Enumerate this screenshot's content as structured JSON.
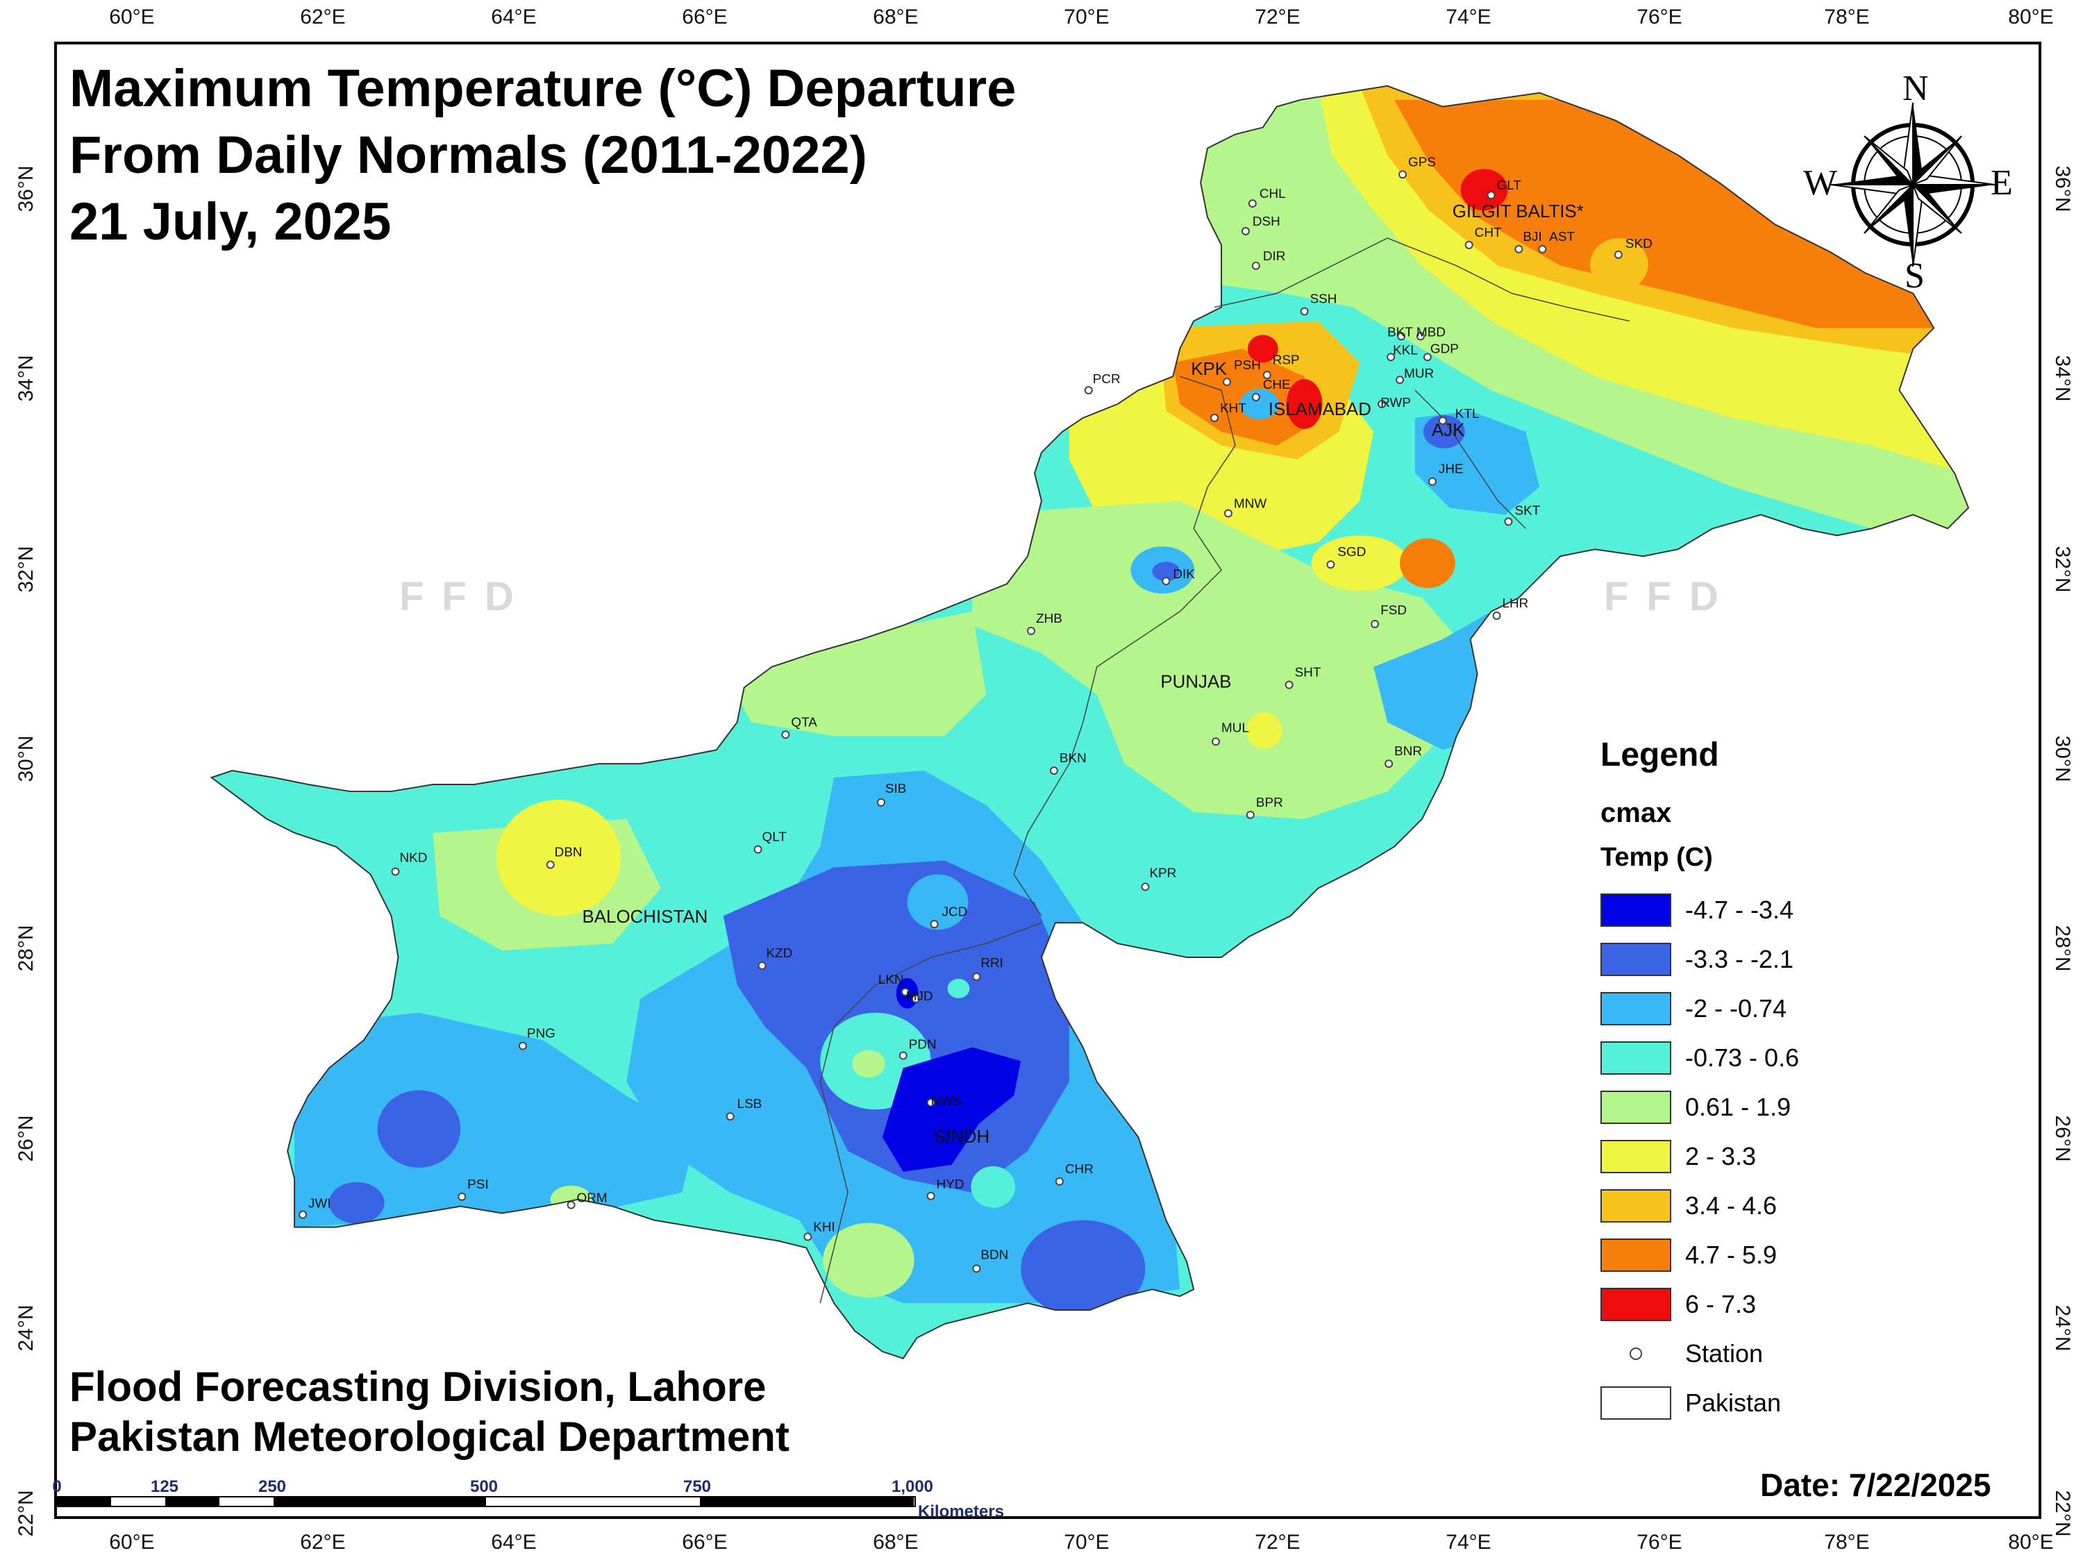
{
  "title": {
    "line1": "Maximum Temperature (°C) Departure",
    "line2": "From Daily Normals (2011-2022)",
    "line3": "21 July, 2025"
  },
  "graticule": {
    "longitudes": [
      "60°E",
      "62°E",
      "64°E",
      "66°E",
      "68°E",
      "70°E",
      "72°E",
      "74°E",
      "76°E",
      "78°E",
      "80°E"
    ],
    "latitudes": [
      "36°N",
      "34°N",
      "32°N",
      "30°N",
      "28°N",
      "26°N",
      "24°N",
      "22°N"
    ]
  },
  "regions": [
    "GILGIT BALTIS*",
    "KPK",
    "ISLAMABAD",
    "AJK",
    "PUNJAB",
    "BALOCHISTAN",
    "SINDH"
  ],
  "stations": [
    "CHL",
    "DSH",
    "DIR",
    "GPS",
    "GLT",
    "CHT",
    "BJI",
    "AST",
    "SKD",
    "SSH",
    "BKT",
    "MBD",
    "KKL",
    "GDP",
    "MUR",
    "PSH",
    "RSP",
    "CHE",
    "KHT",
    "RWP",
    "KTL",
    "JHE",
    "SKT",
    "PCR",
    "MNW",
    "DIK",
    "SGD",
    "LHR",
    "FSD",
    "ZHB",
    "SHT",
    "MUL",
    "QTA",
    "BKN",
    "BNR",
    "BPR",
    "SIB",
    "QLT",
    "NKD",
    "DBN",
    "KPR",
    "JCD",
    "KZD",
    "RRI",
    "LKN",
    "MJD",
    "PNG",
    "PDN",
    "NWS",
    "LSB",
    "HYD",
    "CHR",
    "PSI",
    "ORM",
    "JWI",
    "KHI",
    "BDN"
  ],
  "watermark": "FFD",
  "legend": {
    "title": "Legend",
    "field": "cmax",
    "unit": "Temp (C)",
    "classes": [
      {
        "label": "-4.7 - -3.4",
        "color": "#0000e6"
      },
      {
        "label": "-3.3 - -2.1",
        "color": "#3a63e6"
      },
      {
        "label": "-2 - -0.74",
        "color": "#38b8f5"
      },
      {
        "label": "-0.73 - 0.6",
        "color": "#55f0da"
      },
      {
        "label": "0.61 - 1.9",
        "color": "#b4f58c"
      },
      {
        "label": "2 - 3.3",
        "color": "#f0f542"
      },
      {
        "label": "3.4 - 4.6",
        "color": "#f8c21c"
      },
      {
        "label": "4.7 - 5.9",
        "color": "#f87e0c"
      },
      {
        "label": "6 - 7.3",
        "color": "#ef0c0c"
      }
    ],
    "station_label": "Station",
    "boundary_label": "Pakistan"
  },
  "credits": {
    "line1": "Flood Forecasting Division, Lahore",
    "line2": "Pakistan Meteorological Department"
  },
  "date": "Date: 7/22/2025",
  "scale_bar": {
    "ticks": [
      "0",
      "125",
      "250",
      "500",
      "750",
      "1,000"
    ],
    "unit": "Kilometers"
  },
  "compass": {
    "n": "N",
    "s": "S",
    "e": "E",
    "w": "W"
  }
}
